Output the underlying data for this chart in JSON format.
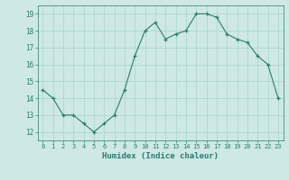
{
  "x": [
    0,
    1,
    2,
    3,
    4,
    5,
    6,
    7,
    8,
    9,
    10,
    11,
    12,
    13,
    14,
    15,
    16,
    17,
    18,
    19,
    20,
    21,
    22,
    23
  ],
  "y": [
    14.5,
    14.0,
    13.0,
    13.0,
    12.5,
    12.0,
    12.5,
    13.0,
    14.5,
    16.5,
    18.0,
    18.5,
    17.5,
    17.8,
    18.0,
    19.0,
    19.0,
    18.8,
    17.8,
    17.5,
    17.3,
    16.5,
    16.0,
    14.0
  ],
  "xlabel": "Humidex (Indice chaleur)",
  "ylabel": "",
  "xlim": [
    -0.5,
    23.5
  ],
  "ylim": [
    11.5,
    19.5
  ],
  "yticks": [
    12,
    13,
    14,
    15,
    16,
    17,
    18,
    19
  ],
  "xticks": [
    0,
    1,
    2,
    3,
    4,
    5,
    6,
    7,
    8,
    9,
    10,
    11,
    12,
    13,
    14,
    15,
    16,
    17,
    18,
    19,
    20,
    21,
    22,
    23
  ],
  "line_color": "#2d7b6e",
  "bg_color": "#cde8e5",
  "grid_color": "#a8d4d0",
  "tick_color": "#2d7b6e",
  "label_color": "#2d7b6e"
}
